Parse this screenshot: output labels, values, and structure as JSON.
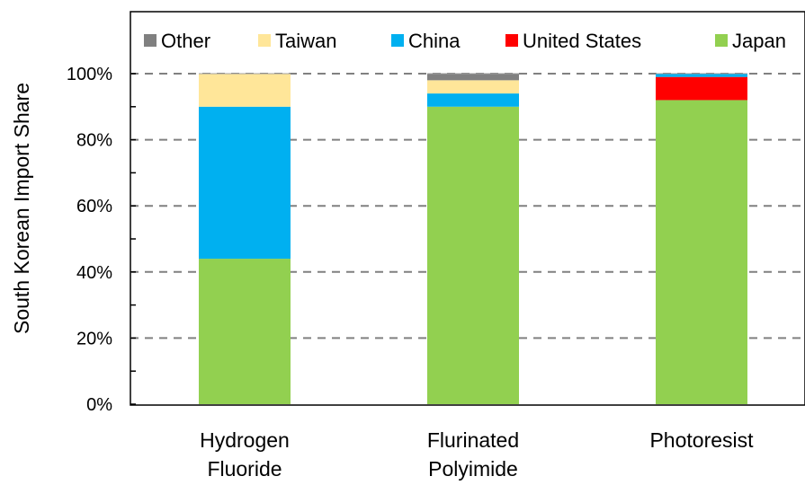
{
  "chart_data": {
    "type": "bar",
    "stacked": true,
    "ylabel": "South Korean Import Share",
    "ylim": [
      0,
      100
    ],
    "yticks": [
      "0%",
      "20%",
      "40%",
      "60%",
      "80%",
      "100%"
    ],
    "grid": "horizontal dashed",
    "legend": "top",
    "categories": [
      [
        "Hydrogen",
        "Fluoride"
      ],
      [
        "Flurinated",
        "Polyimide"
      ],
      [
        "Photoresist"
      ]
    ],
    "series": [
      {
        "name": "Japan",
        "color": "#92d050",
        "values": [
          44,
          90,
          92
        ]
      },
      {
        "name": "United States",
        "color": "#ff0000",
        "values": [
          0,
          0,
          7
        ]
      },
      {
        "name": "China",
        "color": "#00b0f0",
        "values": [
          46,
          4,
          1
        ]
      },
      {
        "name": "Taiwan",
        "color": "#ffe699",
        "values": [
          10,
          4,
          0
        ]
      },
      {
        "name": "Other",
        "color": "#808080",
        "values": [
          0,
          2,
          0
        ]
      }
    ],
    "legend_order": [
      "Other",
      "Taiwan",
      "China",
      "United States",
      "Japan"
    ]
  }
}
